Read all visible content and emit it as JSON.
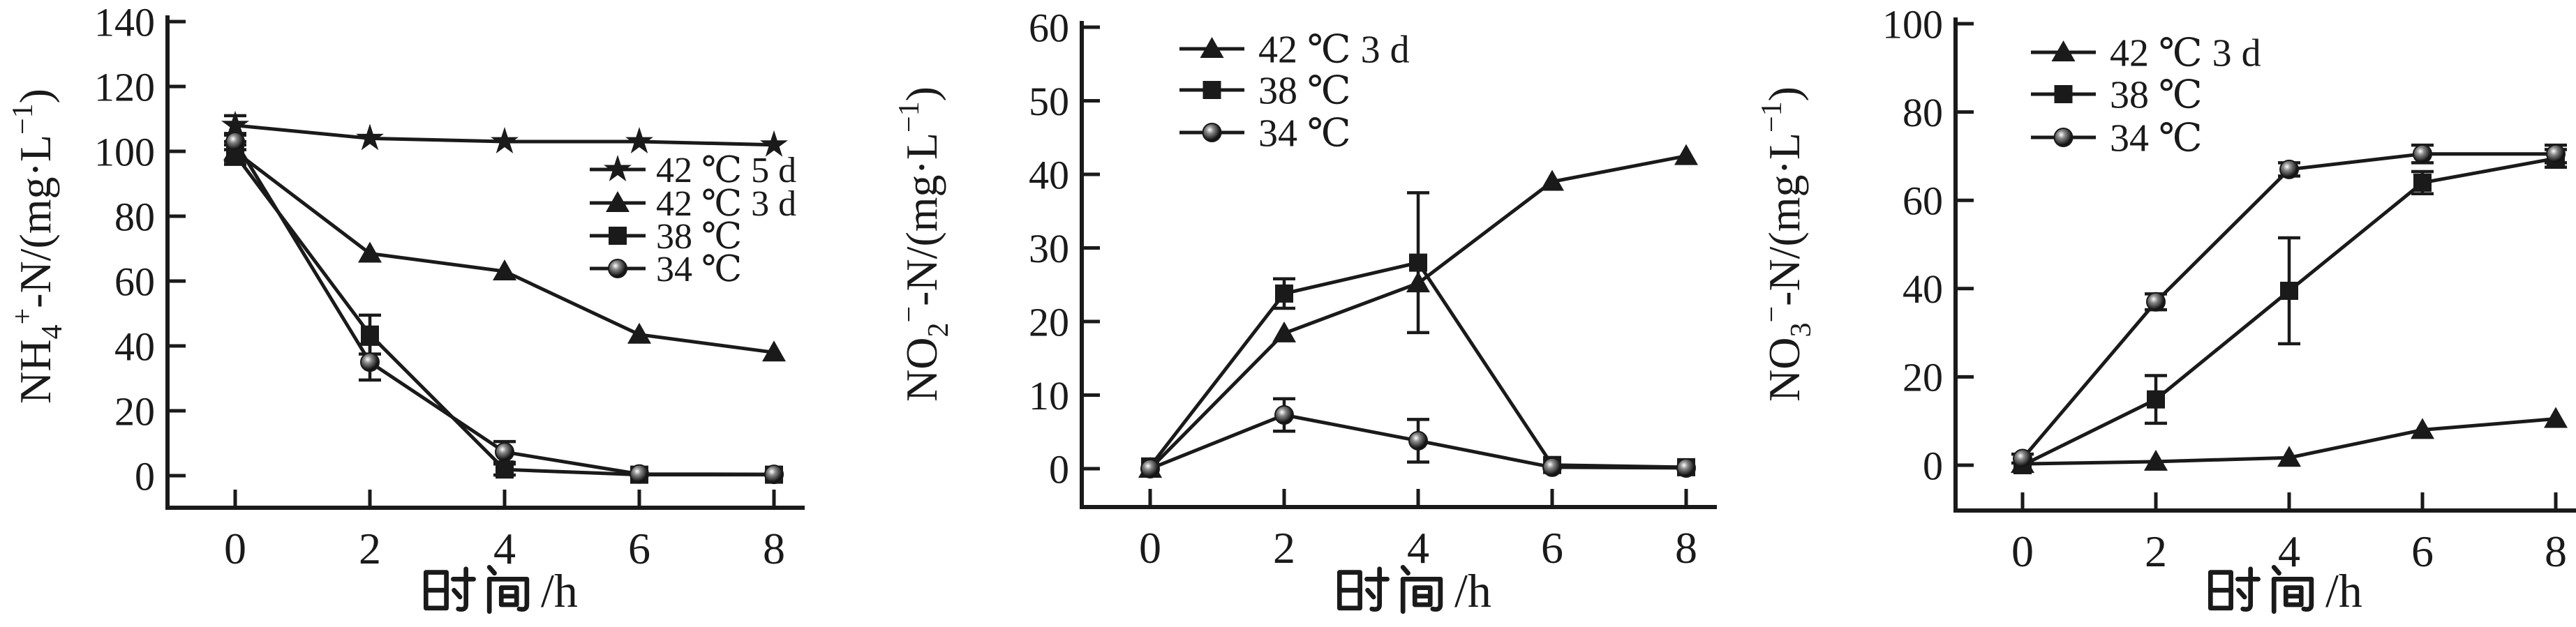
{
  "page": {
    "background": "#ffffff",
    "ink": "#1a1a1a"
  },
  "chart_data": [
    {
      "id": "nh4",
      "type": "line",
      "title": "",
      "xlabel": "时间/h",
      "ylabel_text": "NH4+-N/(mg·L−1)",
      "ylabel_parts": [
        {
          "t": "NH",
          "lvl": 0
        },
        {
          "t": "4",
          "lvl": -1
        },
        {
          "t": "+",
          "lvl": 1
        },
        {
          "t": "-N/(mg·L",
          "lvl": 0
        },
        {
          "t": "−1",
          "lvl": 1
        },
        {
          "t": ")",
          "lvl": 0
        }
      ],
      "x": [
        0,
        2,
        4,
        6,
        8
      ],
      "xticks": [
        "0",
        "2",
        "4",
        "6",
        "8"
      ],
      "ylim": [
        0,
        140
      ],
      "ytick_step": 20,
      "yticks": [
        "0",
        "20",
        "40",
        "60",
        "80",
        "100",
        "120",
        "140"
      ],
      "grid": false,
      "legend_position": "middle-right",
      "series": [
        {
          "name": "42 ℃ 5 d",
          "marker": "star",
          "values": [
            108,
            104,
            103,
            103,
            102
          ],
          "errors": [
            3,
            0,
            0,
            0,
            0
          ]
        },
        {
          "name": "42 ℃ 3 d",
          "marker": "triangle",
          "values": [
            100,
            68.5,
            63,
            43.5,
            38
          ],
          "errors": [
            3,
            0,
            0,
            0,
            0
          ]
        },
        {
          "name": "38 ℃",
          "marker": "square",
          "values": [
            99,
            43.5,
            1.9,
            0.3,
            0.3
          ],
          "errors": [
            3,
            6,
            1.7,
            0,
            0
          ]
        },
        {
          "name": "34 ℃",
          "marker": "circle",
          "values": [
            103,
            35,
            7.3,
            0.5,
            0.4
          ],
          "errors": [
            2.5,
            5.5,
            3.2,
            0,
            0
          ]
        }
      ]
    },
    {
      "id": "no2",
      "type": "line",
      "title": "",
      "xlabel": "时间/h",
      "ylabel_text": "NO2−-N/(mg·L−1)",
      "ylabel_parts": [
        {
          "t": "NO",
          "lvl": 0
        },
        {
          "t": "2",
          "lvl": -1
        },
        {
          "t": "−",
          "lvl": 1
        },
        {
          "t": "-N/(mg·L",
          "lvl": 0
        },
        {
          "t": "−1",
          "lvl": 1
        },
        {
          "t": ")",
          "lvl": 0
        }
      ],
      "x": [
        0,
        2,
        4,
        6,
        8
      ],
      "xticks": [
        "0",
        "2",
        "4",
        "6",
        "8"
      ],
      "ylim": [
        0,
        60
      ],
      "ytick_step": 10,
      "yticks": [
        "0",
        "10",
        "20",
        "30",
        "40",
        "50",
        "60"
      ],
      "grid": false,
      "legend_position": "top-left",
      "series": [
        {
          "name": "42 ℃ 3 d",
          "marker": "triangle",
          "values": [
            0,
            18.4,
            25.2,
            39,
            42.5
          ],
          "errors": [
            0,
            0,
            0,
            0,
            0
          ]
        },
        {
          "name": "38 ℃",
          "marker": "square",
          "values": [
            0.3,
            23.8,
            28,
            0.5,
            0.2
          ],
          "errors": [
            0,
            2,
            9.5,
            0,
            0
          ]
        },
        {
          "name": "34 ℃",
          "marker": "circle",
          "values": [
            0,
            7.3,
            3.8,
            0.2,
            0.1
          ],
          "errors": [
            0,
            2.2,
            2.9,
            0,
            0
          ]
        }
      ]
    },
    {
      "id": "no3",
      "type": "line",
      "title": "",
      "xlabel": "时间/h",
      "ylabel_text": "NO3−-N/(mg·L−1)",
      "ylabel_parts": [
        {
          "t": "NO",
          "lvl": 0
        },
        {
          "t": "3",
          "lvl": -1
        },
        {
          "t": "−",
          "lvl": 1
        },
        {
          "t": "-N/(mg·L",
          "lvl": 0
        },
        {
          "t": "−1",
          "lvl": 1
        },
        {
          "t": ")",
          "lvl": 0
        }
      ],
      "x": [
        0,
        2,
        4,
        6,
        8
      ],
      "xticks": [
        "0",
        "2",
        "4",
        "6",
        "8"
      ],
      "ylim": [
        0,
        100
      ],
      "ytick_step": 20,
      "yticks": [
        "0",
        "20",
        "40",
        "60",
        "80",
        "100"
      ],
      "grid": false,
      "legend_position": "top-left",
      "series": [
        {
          "name": "42 ℃ 3 d",
          "marker": "triangle",
          "values": [
            0.3,
            0.8,
            1.7,
            8,
            10.5
          ],
          "errors": [
            0,
            0,
            0,
            0,
            0
          ]
        },
        {
          "name": "38 ℃",
          "marker": "square",
          "values": [
            0,
            14.9,
            39.5,
            64,
            69.5
          ],
          "errors": [
            0,
            5.4,
            12,
            2.5,
            2
          ]
        },
        {
          "name": "34 ℃",
          "marker": "circle",
          "values": [
            1.5,
            37,
            67,
            70.5,
            70.5
          ],
          "errors": [
            1,
            1.8,
            1.5,
            2,
            2
          ]
        }
      ]
    }
  ]
}
